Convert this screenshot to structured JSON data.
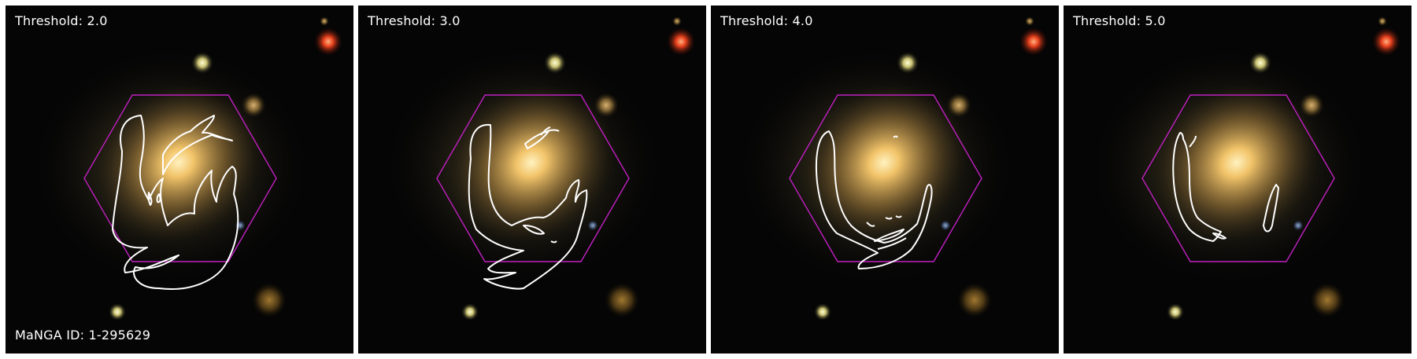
{
  "panels": [
    {
      "threshold_label": "Threshold: 2.0"
    },
    {
      "threshold_label": "Threshold: 3.0"
    },
    {
      "threshold_label": "Threshold: 4.0"
    },
    {
      "threshold_label": "Threshold: 5.0"
    }
  ],
  "manga_id_label": "MaNGA ID: 1-295629",
  "colors": {
    "background": "#050505",
    "galaxy_core": "#f2c46a",
    "hexagon": "#c020c0",
    "contour": "#ffffff",
    "red_star": "#e8401c"
  }
}
